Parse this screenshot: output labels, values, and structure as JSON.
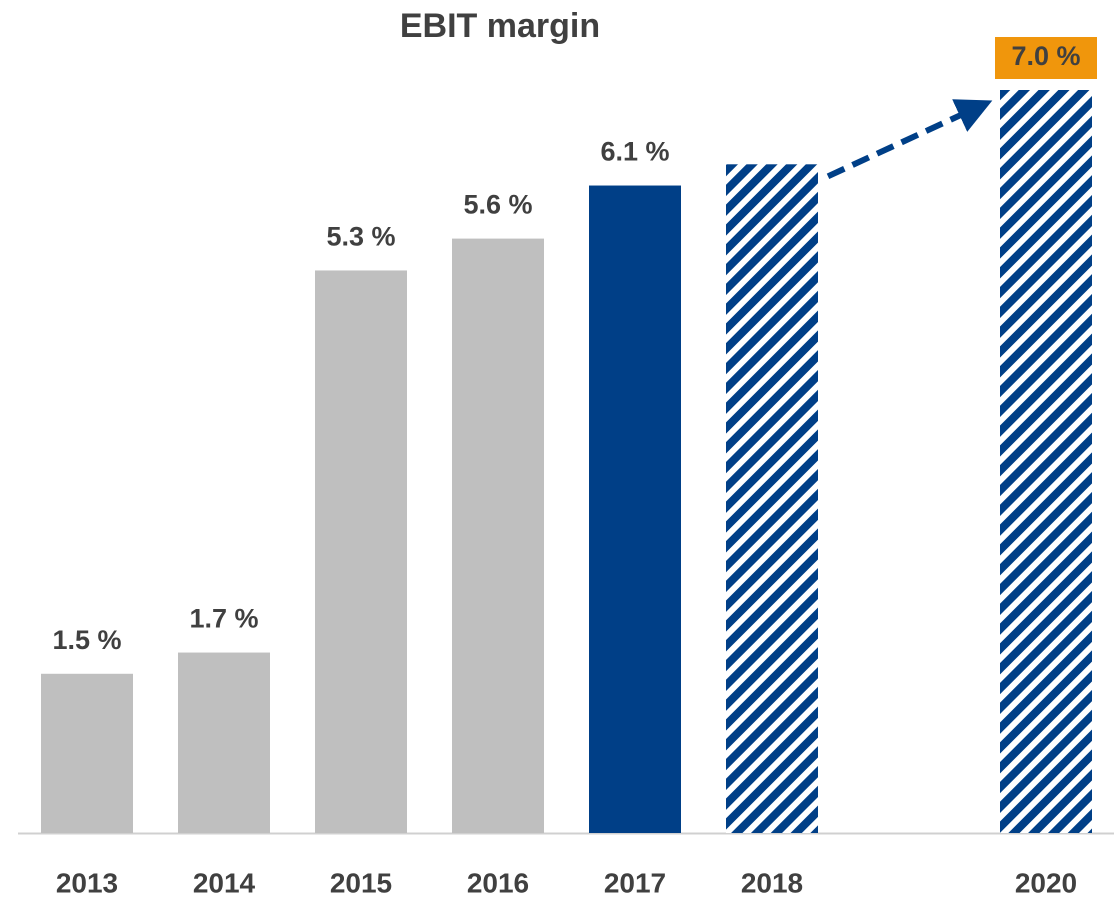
{
  "chart_data": {
    "type": "bar",
    "title": "EBIT margin",
    "categories": [
      "2013",
      "2014",
      "2015",
      "2016",
      "2017",
      "2018",
      null,
      "2020"
    ],
    "values": [
      1.5,
      1.7,
      5.3,
      5.6,
      6.1,
      6.3,
      null,
      7.0
    ],
    "value_labels": [
      "1.5 %",
      "1.7 %",
      "5.3 %",
      "5.6 %",
      "6.1 %",
      null,
      null,
      "7.0 %"
    ],
    "colors": [
      "#bfbfbf",
      "#bfbfbf",
      "#bfbfbf",
      "#bfbfbf",
      "#003f87",
      "#003f87",
      null,
      "#003f87"
    ],
    "hatched": [
      false,
      false,
      false,
      false,
      false,
      true,
      null,
      true
    ],
    "label_backgrounds": [
      null,
      null,
      null,
      null,
      null,
      null,
      null,
      "#f0960c"
    ]
  }
}
